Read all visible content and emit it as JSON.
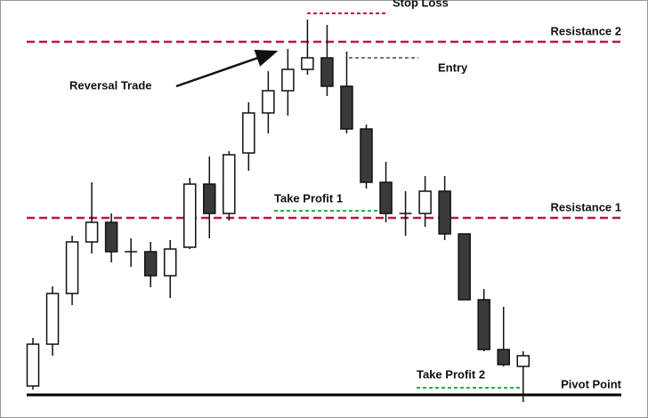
{
  "chart_data": {
    "type": "candlestick",
    "ylim": [
      0,
      460
    ],
    "open": [
      26,
      73,
      130,
      188,
      210,
      177,
      177,
      150,
      182,
      253,
      220,
      288,
      333,
      358,
      382,
      395,
      363,
      315,
      255,
      220,
      220,
      245,
      197,
      123,
      67,
      48
    ],
    "high": [
      80,
      138,
      195,
      255,
      220,
      192,
      188,
      190,
      260,
      284,
      290,
      345,
      380,
      405,
      438,
      432,
      402,
      320,
      278,
      245,
      262,
      262,
      197,
      135,
      115,
      65
    ],
    "low": [
      22,
      60,
      117,
      175,
      165,
      160,
      137,
      125,
      180,
      192,
      212,
      268,
      310,
      330,
      376,
      352,
      310,
      248,
      210,
      195,
      205,
      190,
      123,
      65,
      48,
      8
    ],
    "close": [
      73,
      130,
      188,
      210,
      177,
      177,
      150,
      180,
      253,
      220,
      286,
      333,
      358,
      382,
      395,
      363,
      315,
      255,
      220,
      220,
      245,
      197,
      123,
      67,
      50,
      60
    ],
    "up_color": "#ffffff",
    "down_color": "#3a3a3a",
    "levels": [
      {
        "name": "Resistance 2",
        "value": 413,
        "color": "#c0143c"
      },
      {
        "name": "Resistance 1",
        "value": 215,
        "color": "#c0143c"
      },
      {
        "name": "Pivot Point",
        "value": 16,
        "color": "#000000"
      }
    ],
    "trade_lines": [
      {
        "name": "Stop Loss",
        "value": 445,
        "color": "#c0143c"
      },
      {
        "name": "Entry",
        "value": 395,
        "color": "#777777"
      },
      {
        "name": "Take Profit 1",
        "value": 223,
        "color": "#22b04a"
      },
      {
        "name": "Take Profit 2",
        "value": 24,
        "color": "#22b04a"
      }
    ],
    "annotation": "Reversal Trade"
  }
}
